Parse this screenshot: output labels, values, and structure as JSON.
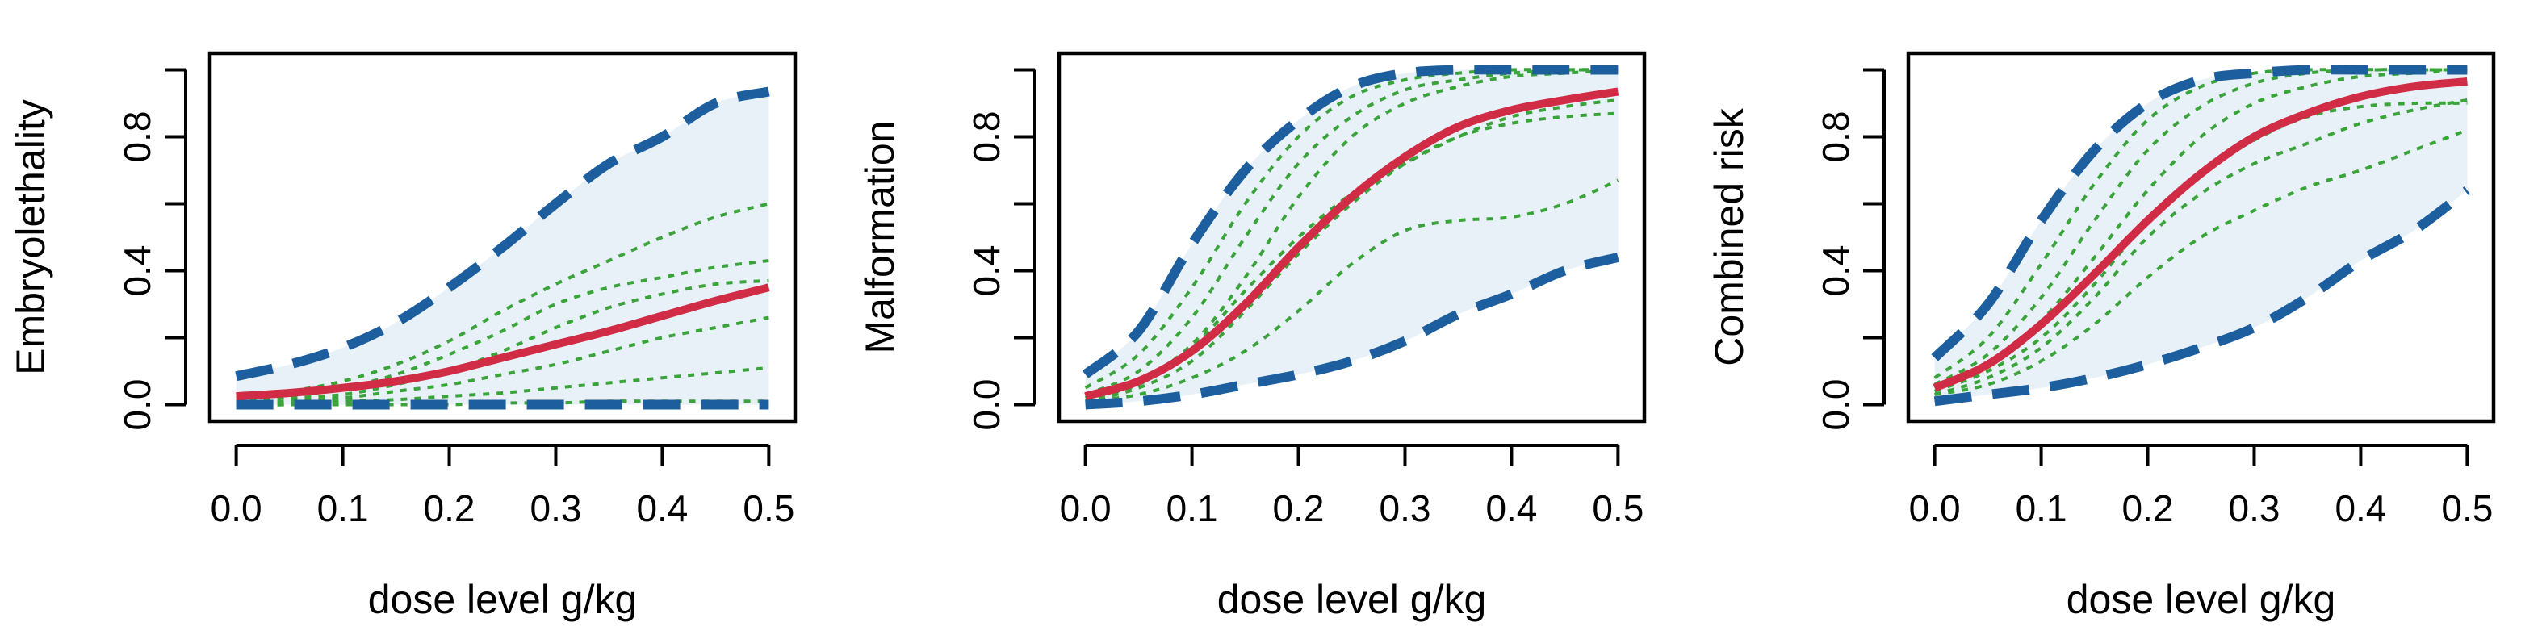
{
  "chart_data": [
    {
      "type": "line",
      "ylabel": "Embryolethality",
      "xlabel": "dose level g/kg",
      "xlim": [
        0,
        0.5
      ],
      "ylim": [
        0,
        1
      ],
      "xticks": [
        "0.0",
        "0.1",
        "0.2",
        "0.3",
        "0.4",
        "0.5"
      ],
      "yticks": [
        "0.0",
        "0.4",
        "0.8"
      ],
      "ytick_minor": [
        0.2,
        0.6,
        1.0
      ],
      "x": [
        0,
        0.05,
        0.1,
        0.15,
        0.2,
        0.25,
        0.3,
        0.35,
        0.4,
        0.45,
        0.5
      ],
      "upper": [
        0.085,
        0.12,
        0.17,
        0.245,
        0.35,
        0.47,
        0.6,
        0.72,
        0.8,
        0.9,
        0.935
      ],
      "lower": [
        0.0,
        0.0,
        0.0,
        0.0,
        0.0,
        0.0,
        0.0,
        0.0,
        0.0,
        0.0,
        0.0
      ],
      "mean": [
        0.025,
        0.035,
        0.05,
        0.07,
        0.1,
        0.14,
        0.18,
        0.22,
        0.265,
        0.31,
        0.35
      ],
      "samples": [
        [
          0.02,
          0.04,
          0.07,
          0.12,
          0.19,
          0.28,
          0.36,
          0.43,
          0.5,
          0.56,
          0.6
        ],
        [
          0.01,
          0.025,
          0.05,
          0.09,
          0.15,
          0.22,
          0.3,
          0.35,
          0.38,
          0.41,
          0.43
        ],
        [
          0.01,
          0.02,
          0.03,
          0.06,
          0.1,
          0.16,
          0.23,
          0.29,
          0.33,
          0.36,
          0.37
        ],
        [
          0.0,
          0.01,
          0.02,
          0.04,
          0.06,
          0.09,
          0.12,
          0.16,
          0.2,
          0.23,
          0.26
        ],
        [
          0.0,
          0.0,
          0.01,
          0.015,
          0.025,
          0.035,
          0.05,
          0.065,
          0.08,
          0.095,
          0.11
        ],
        [
          0.0,
          0.0,
          0.0,
          0.0,
          0.0,
          0.005,
          0.005,
          0.01,
          0.01,
          0.01,
          0.01
        ]
      ]
    },
    {
      "type": "line",
      "ylabel": "Malformation",
      "xlabel": "dose level g/kg",
      "xlim": [
        0,
        0.5
      ],
      "ylim": [
        0,
        1
      ],
      "xticks": [
        "0.0",
        "0.1",
        "0.2",
        "0.3",
        "0.4",
        "0.5"
      ],
      "yticks": [
        "0.0",
        "0.4",
        "0.8"
      ],
      "ytick_minor": [
        0.2,
        0.6,
        1.0
      ],
      "x": [
        0,
        0.05,
        0.1,
        0.15,
        0.2,
        0.25,
        0.3,
        0.35,
        0.4,
        0.45,
        0.5
      ],
      "upper": [
        0.09,
        0.22,
        0.48,
        0.7,
        0.85,
        0.95,
        0.99,
        1.0,
        1.0,
        1.0,
        1.0
      ],
      "lower": [
        0.0,
        0.01,
        0.03,
        0.06,
        0.09,
        0.13,
        0.19,
        0.27,
        0.33,
        0.4,
        0.44
      ],
      "mean": [
        0.025,
        0.07,
        0.16,
        0.3,
        0.47,
        0.62,
        0.74,
        0.83,
        0.88,
        0.91,
        0.935
      ],
      "samples": [
        [
          0.05,
          0.15,
          0.35,
          0.6,
          0.8,
          0.92,
          0.97,
          0.99,
          1.0,
          1.0,
          1.0
        ],
        [
          0.03,
          0.1,
          0.26,
          0.5,
          0.72,
          0.86,
          0.94,
          0.97,
          0.99,
          1.0,
          1.0
        ],
        [
          0.02,
          0.07,
          0.18,
          0.38,
          0.62,
          0.8,
          0.9,
          0.95,
          0.98,
          0.99,
          1.0
        ],
        [
          0.02,
          0.06,
          0.17,
          0.34,
          0.5,
          0.63,
          0.72,
          0.8,
          0.86,
          0.89,
          0.91
        ],
        [
          0.01,
          0.05,
          0.13,
          0.28,
          0.45,
          0.6,
          0.72,
          0.8,
          0.84,
          0.86,
          0.87
        ],
        [
          0.01,
          0.03,
          0.08,
          0.16,
          0.28,
          0.42,
          0.52,
          0.55,
          0.56,
          0.6,
          0.67
        ]
      ]
    },
    {
      "type": "line",
      "ylabel": "Combined risk",
      "xlabel": "dose level g/kg",
      "xlim": [
        0,
        0.5
      ],
      "ylim": [
        0,
        1
      ],
      "xticks": [
        "0.0",
        "0.1",
        "0.2",
        "0.3",
        "0.4",
        "0.5"
      ],
      "yticks": [
        "0.0",
        "0.4",
        "0.8"
      ],
      "ytick_minor": [
        0.2,
        0.6,
        1.0
      ],
      "x": [
        0,
        0.05,
        0.1,
        0.15,
        0.2,
        0.25,
        0.3,
        0.35,
        0.4,
        0.45,
        0.5
      ],
      "upper": [
        0.14,
        0.3,
        0.55,
        0.76,
        0.9,
        0.97,
        0.99,
        1.0,
        1.0,
        1.0,
        1.0
      ],
      "lower": [
        0.01,
        0.03,
        0.05,
        0.08,
        0.12,
        0.17,
        0.23,
        0.32,
        0.43,
        0.52,
        0.64
      ],
      "mean": [
        0.05,
        0.12,
        0.24,
        0.39,
        0.55,
        0.69,
        0.8,
        0.87,
        0.92,
        0.95,
        0.965
      ],
      "samples": [
        [
          0.08,
          0.2,
          0.42,
          0.66,
          0.85,
          0.95,
          0.99,
          1.0,
          1.0,
          1.0,
          1.0
        ],
        [
          0.06,
          0.15,
          0.32,
          0.55,
          0.76,
          0.89,
          0.96,
          0.99,
          1.0,
          1.0,
          1.0
        ],
        [
          0.05,
          0.12,
          0.25,
          0.44,
          0.64,
          0.8,
          0.9,
          0.95,
          0.98,
          0.99,
          1.0
        ],
        [
          0.04,
          0.1,
          0.2,
          0.36,
          0.55,
          0.69,
          0.79,
          0.86,
          0.89,
          0.9,
          0.9
        ],
        [
          0.03,
          0.08,
          0.17,
          0.32,
          0.5,
          0.63,
          0.72,
          0.78,
          0.84,
          0.88,
          0.91
        ],
        [
          0.03,
          0.06,
          0.13,
          0.24,
          0.38,
          0.5,
          0.58,
          0.65,
          0.7,
          0.76,
          0.82
        ]
      ]
    }
  ],
  "colors": {
    "band": "#e8f1f8",
    "bound": "#1d5f9e",
    "sample": "#3aa33a",
    "mean": "#d12c45",
    "axis": "#000000"
  }
}
